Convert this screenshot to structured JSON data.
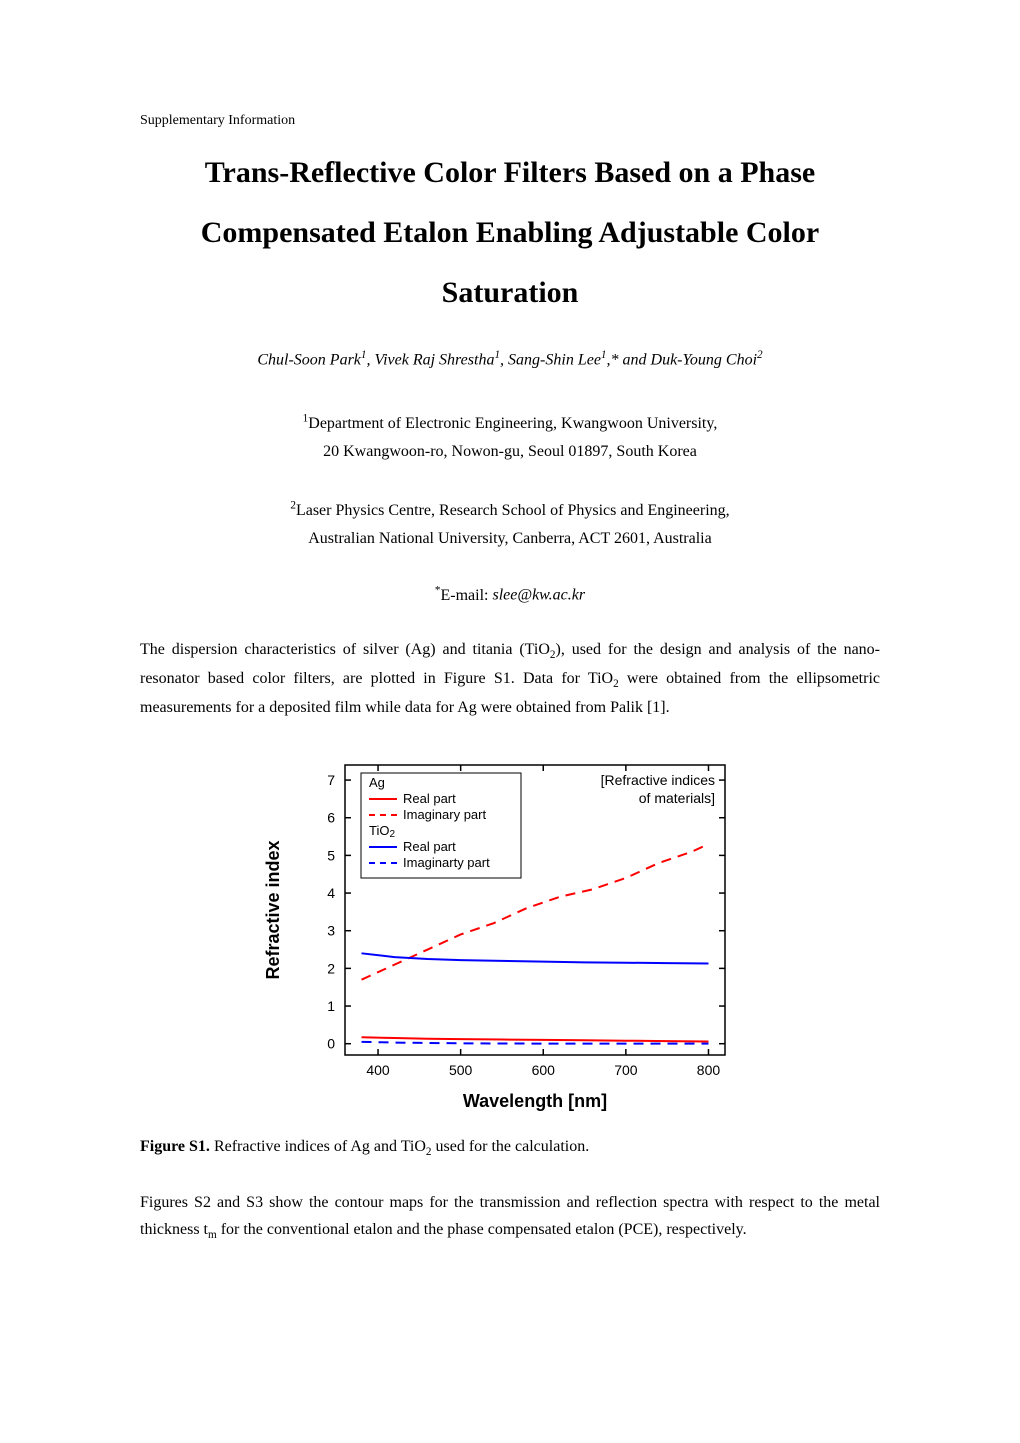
{
  "supp_label": "Supplementary Information",
  "title_line1": "Trans-Reflective Color Filters Based on a Phase",
  "title_line2": "Compensated Etalon Enabling Adjustable Color",
  "title_line3": "Saturation",
  "authors_html": "Chul-Soon Park<sup>1</sup>, Vivek Raj Shrestha<sup>1</sup>, Sang-Shin Lee<sup>1</sup>,* and Duk-Young Choi<sup>2</sup>",
  "affil1_line1_html": "<sup>1</sup>Department of Electronic Engineering, Kwangwoon University,",
  "affil1_line2": "20 Kwangwoon-ro, Nowon-gu, Seoul 01897, South Korea",
  "affil2_line1_html": "<sup>2</sup>Laser Physics Centre, Research School of Physics and Engineering,",
  "affil2_line2": "Australian National University, Canberra, ACT 2601, Australia",
  "email_prefix_html": "<sup>*</sup>E-mail: ",
  "email_addr": "slee@kw.ac.kr",
  "para1_html": "The dispersion characteristics of silver (Ag) and titania (TiO<sub>2</sub>), used for the design and analysis of the nano-resonator based color filters, are plotted in Figure S1. Data for TiO<sub>2</sub> were obtained from the ellipsometric measurements for a deposited film while data for Ag were obtained from Palik [1].",
  "para2_html": "Figures S2 and S3 show the contour maps for the transmission and reflection spectra with respect to the metal thickness t<sub>m</sub> for the conventional etalon and the phase compensated etalon (PCE), respectively.",
  "figure_s1": {
    "caption_label": "Figure S1.",
    "caption_text_html": " Refractive indices of Ag and TiO<sub>2</sub> used for the calculation.",
    "type": "line",
    "inset_label": "[Refractive indices of materials]",
    "xlabel": "Wavelength [nm]",
    "ylabel": "Refractive index",
    "xlim": [
      360,
      820
    ],
    "ylim": [
      -0.3,
      7.4
    ],
    "xticks": [
      400,
      500,
      600,
      700,
      800
    ],
    "yticks": [
      0,
      1,
      2,
      3,
      4,
      5,
      6,
      7
    ],
    "legend_box_ag": "Ag",
    "legend_box_tio2_html": "TiO<sub>2</sub>",
    "legend_items": [
      {
        "label": "Real part",
        "color": "#ff0000",
        "dash": "solid"
      },
      {
        "label": "Imaginary part",
        "color": "#ff0000",
        "dash": "dash"
      },
      {
        "label": "Real part",
        "color": "#0000ff",
        "dash": "solid"
      },
      {
        "label": "Imaginarty part",
        "color": "#0000ff",
        "dash": "dash"
      }
    ],
    "series": {
      "ag_real": {
        "color": "#ff0000",
        "dash": "solid",
        "width": 2,
        "points": [
          [
            380,
            0.17
          ],
          [
            420,
            0.15
          ],
          [
            460,
            0.13
          ],
          [
            500,
            0.12
          ],
          [
            550,
            0.11
          ],
          [
            600,
            0.1
          ],
          [
            650,
            0.09
          ],
          [
            700,
            0.08
          ],
          [
            750,
            0.07
          ],
          [
            800,
            0.06
          ]
        ]
      },
      "ag_imag": {
        "color": "#ff0000",
        "dash": "dash",
        "width": 2,
        "points": [
          [
            380,
            1.7
          ],
          [
            420,
            2.1
          ],
          [
            460,
            2.5
          ],
          [
            500,
            2.9
          ],
          [
            540,
            3.2
          ],
          [
            580,
            3.6
          ],
          [
            620,
            3.9
          ],
          [
            660,
            4.1
          ],
          [
            700,
            4.4
          ],
          [
            740,
            4.8
          ],
          [
            780,
            5.1
          ],
          [
            800,
            5.3
          ]
        ]
      },
      "tio2_real": {
        "color": "#0000ff",
        "dash": "solid",
        "width": 2,
        "points": [
          [
            380,
            2.4
          ],
          [
            420,
            2.3
          ],
          [
            460,
            2.25
          ],
          [
            500,
            2.22
          ],
          [
            550,
            2.2
          ],
          [
            600,
            2.18
          ],
          [
            650,
            2.16
          ],
          [
            700,
            2.15
          ],
          [
            750,
            2.14
          ],
          [
            800,
            2.13
          ]
        ]
      },
      "tio2_imag": {
        "color": "#0000ff",
        "dash": "dash",
        "width": 2,
        "points": [
          [
            380,
            0.05
          ],
          [
            420,
            0.03
          ],
          [
            460,
            0.02
          ],
          [
            500,
            0.01
          ],
          [
            550,
            0.005
          ],
          [
            600,
            0.003
          ],
          [
            650,
            0.002
          ],
          [
            700,
            0.001
          ],
          [
            750,
            0.001
          ],
          [
            800,
            0.001
          ]
        ]
      }
    },
    "axis_color": "#000000",
    "label_fontsize": 18,
    "tick_fontsize": 14,
    "tick_fontfamily": "Arial, sans-serif",
    "label_fontweight": "bold",
    "background_color": "#ffffff"
  }
}
